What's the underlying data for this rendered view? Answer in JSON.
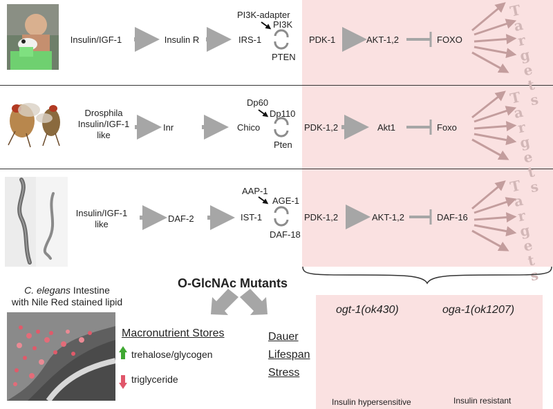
{
  "rows": [
    {
      "organism": "Insulin/IGF-1",
      "receptor": "Insulin R",
      "substrate": "IRS-1",
      "adapter": "PI3K-adapter",
      "kinase": "PI3K",
      "phosphatase": "PTEN",
      "pdk": "PDK-1",
      "akt": "AKT-1,2",
      "foxo": "FOXO"
    },
    {
      "organism": "Drosphila Insulin/IGF-1 like",
      "receptor": "Inr",
      "substrate": "Chico",
      "adapter": "Dp60",
      "kinase": "Dp110",
      "phosphatase": "Pten",
      "pdk": "PDK-1,2",
      "akt": "Akt1",
      "foxo": "Foxo"
    },
    {
      "organism": "Insulin/IGF-1 like",
      "receptor": "DAF-2",
      "substrate": "IST-1",
      "adapter": "AAP-1",
      "kinase": "AGE-1",
      "phosphatase": "DAF-18",
      "pdk": "PDK-1,2",
      "akt": "AKT-1,2",
      "foxo": "DAF-16"
    }
  ],
  "targets_label": "Targets",
  "mutants": {
    "title": "O-GlcNAc Mutants",
    "image_caption_species": "C. elegans",
    "image_caption_rest1": " Intestine",
    "image_caption_line2": "with Nile Red stained lipid",
    "macronutrient_heading": "Macronutrient Stores",
    "trehalose": "trehalose/glycogen",
    "triglyceride": "triglyceride",
    "phenotypes": [
      "Dauer",
      "Lifespan",
      "Stress"
    ],
    "columns": [
      "ogt-1(ok430)",
      "oga-1(ok1207)"
    ],
    "col_footers": [
      "Insulin hypersensitive",
      "Insulin resistant"
    ]
  },
  "colors": {
    "up_arrow": "#3fa832",
    "down_arrow": "#e0566a",
    "pathway_arrow": "#a6a6a6",
    "pink_panel": "#fae1e1"
  }
}
